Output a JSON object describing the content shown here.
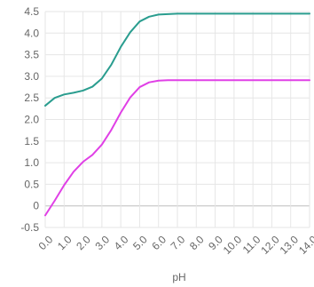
{
  "chart_data": {
    "type": "line",
    "title": "",
    "xlabel": "pH",
    "ylabel": "",
    "xlim": [
      0,
      14
    ],
    "ylim": [
      -0.5,
      4.5
    ],
    "grid": true,
    "legend": "none",
    "x_ticks": [
      "0.0",
      "1.0",
      "2.0",
      "3.0",
      "4.0",
      "5.0",
      "6.0",
      "7.0",
      "8.0",
      "9.0",
      "10.0",
      "11.0",
      "12.0",
      "13.0",
      "14.0"
    ],
    "y_ticks": [
      "-0.5",
      "0",
      "0.5",
      "1.0",
      "1.5",
      "2.0",
      "2.5",
      "3.0",
      "3.5",
      "4.0",
      "4.5"
    ],
    "x": [
      0,
      0.5,
      1,
      1.5,
      2,
      2.5,
      3,
      3.5,
      4,
      4.5,
      5,
      5.5,
      6,
      6.5,
      7,
      7.5,
      8,
      8.5,
      9,
      9.5,
      10,
      10.5,
      11,
      11.5,
      12,
      12.5,
      13,
      13.5,
      14
    ],
    "series": [
      {
        "color": "#2a9d8f",
        "values": [
          2.32,
          2.5,
          2.58,
          2.62,
          2.67,
          2.76,
          2.95,
          3.27,
          3.68,
          4.02,
          4.27,
          4.38,
          4.43,
          4.44,
          4.45,
          4.45,
          4.45,
          4.45,
          4.45,
          4.45,
          4.45,
          4.45,
          4.45,
          4.45,
          4.45,
          4.45,
          4.45,
          4.45,
          4.45
        ]
      },
      {
        "color": "#e040e6",
        "values": [
          -0.22,
          0.12,
          0.48,
          0.79,
          1.02,
          1.18,
          1.42,
          1.76,
          2.16,
          2.51,
          2.75,
          2.86,
          2.9,
          2.91,
          2.91,
          2.91,
          2.91,
          2.91,
          2.91,
          2.91,
          2.91,
          2.91,
          2.91,
          2.91,
          2.91,
          2.91,
          2.91,
          2.91,
          2.91
        ]
      }
    ]
  }
}
